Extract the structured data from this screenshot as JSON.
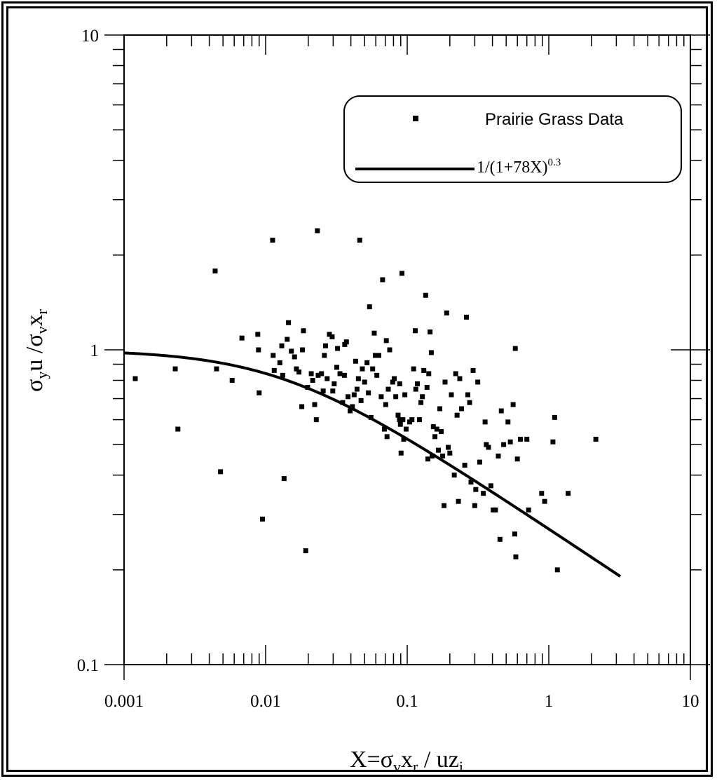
{
  "chart_data": {
    "type": "scatter",
    "x_scale": "log",
    "y_scale": "log",
    "xlim": [
      0.001,
      10
    ],
    "ylim": [
      0.1,
      10
    ],
    "grid": false,
    "x_ticks": [
      "0.001",
      "0.01",
      "0.1",
      "1",
      "10"
    ],
    "y_ticks": [
      "0.1",
      "1",
      "10"
    ],
    "xlabel": {
      "main": "X=σ",
      "sub1": "v",
      "mid": "x",
      "sub2": "r",
      "tail": " / uz",
      "sub3": "i"
    },
    "ylabel": {
      "main": "σ",
      "sub1": "y",
      "mid": "u /σ",
      "sub2": "v",
      "tail": "x",
      "sub3": "r"
    },
    "legend": {
      "placement": "top-right",
      "entries": [
        {
          "label": "Prairie Grass Data",
          "marker": "dot"
        },
        {
          "label": "1/(1+78X)",
          "superscript": "0.3",
          "marker": "line"
        }
      ]
    },
    "series": [
      {
        "name": "Prairie Grass Data",
        "kind": "points",
        "color": "#000000",
        "points": [
          [
            0.0012,
            0.81
          ],
          [
            0.0023,
            0.87
          ],
          [
            0.0024,
            0.56
          ],
          [
            0.0044,
            1.78
          ],
          [
            0.0045,
            0.87
          ],
          [
            0.0048,
            0.41
          ],
          [
            0.0058,
            0.8
          ],
          [
            0.0068,
            1.09
          ],
          [
            0.0088,
            1.12
          ],
          [
            0.0089,
            1.0
          ],
          [
            0.009,
            0.73
          ],
          [
            0.0095,
            0.29
          ],
          [
            0.0112,
            2.23
          ],
          [
            0.0113,
            0.96
          ],
          [
            0.0115,
            0.86
          ],
          [
            0.0126,
            0.91
          ],
          [
            0.013,
            1.03
          ],
          [
            0.0132,
            0.83
          ],
          [
            0.0135,
            0.39
          ],
          [
            0.0142,
            1.08
          ],
          [
            0.0145,
            1.22
          ],
          [
            0.0152,
            0.99
          ],
          [
            0.016,
            0.95
          ],
          [
            0.0165,
            0.87
          ],
          [
            0.0172,
            0.85
          ],
          [
            0.018,
            0.66
          ],
          [
            0.0182,
            1.0
          ],
          [
            0.0185,
            1.15
          ],
          [
            0.0192,
            0.23
          ],
          [
            0.0198,
            0.76
          ],
          [
            0.021,
            0.84
          ],
          [
            0.0215,
            0.8
          ],
          [
            0.0222,
            0.67
          ],
          [
            0.0228,
            0.6
          ],
          [
            0.0232,
            2.39
          ],
          [
            0.0235,
            0.83
          ],
          [
            0.0248,
            0.84
          ],
          [
            0.0255,
            0.74
          ],
          [
            0.026,
            0.96
          ],
          [
            0.0265,
            1.03
          ],
          [
            0.0272,
            0.81
          ],
          [
            0.0282,
            1.12
          ],
          [
            0.0295,
            1.1
          ],
          [
            0.0298,
            0.74
          ],
          [
            0.0305,
            0.78
          ],
          [
            0.0318,
            0.88
          ],
          [
            0.0322,
            1.01
          ],
          [
            0.0335,
            0.84
          ],
          [
            0.035,
            0.68
          ],
          [
            0.036,
            0.83
          ],
          [
            0.0362,
            1.04
          ],
          [
            0.0372,
            1.06
          ],
          [
            0.0382,
            0.71
          ],
          [
            0.0395,
            0.64
          ],
          [
            0.041,
            0.66
          ],
          [
            0.0422,
            0.72
          ],
          [
            0.0432,
            0.92
          ],
          [
            0.0442,
            0.75
          ],
          [
            0.0452,
            0.81
          ],
          [
            0.0462,
            2.23
          ],
          [
            0.0472,
            0.69
          ],
          [
            0.0482,
            0.87
          ],
          [
            0.05,
            0.79
          ],
          [
            0.052,
            0.91
          ],
          [
            0.0532,
            0.73
          ],
          [
            0.0542,
            1.37
          ],
          [
            0.0555,
            0.61
          ],
          [
            0.057,
            0.87
          ],
          [
            0.0585,
            1.13
          ],
          [
            0.0595,
            0.96
          ],
          [
            0.061,
            0.83
          ],
          [
            0.063,
            0.96
          ],
          [
            0.0655,
            0.71
          ],
          [
            0.067,
            1.67
          ],
          [
            0.069,
            0.56
          ],
          [
            0.0705,
            0.67
          ],
          [
            0.0712,
            1.07
          ],
          [
            0.072,
            0.53
          ],
          [
            0.0735,
            0.75
          ],
          [
            0.0752,
            1.0
          ],
          [
            0.079,
            0.79
          ],
          [
            0.081,
            0.81
          ],
          [
            0.083,
            0.71
          ],
          [
            0.0862,
            0.62
          ],
          [
            0.0882,
            0.6
          ],
          [
            0.0885,
            0.78
          ],
          [
            0.0895,
            0.58
          ],
          [
            0.0905,
            0.47
          ],
          [
            0.0918,
            1.75
          ],
          [
            0.0932,
            0.6
          ],
          [
            0.0945,
            0.52
          ],
          [
            0.0962,
            0.72
          ],
          [
            0.0982,
            0.56
          ],
          [
            0.104,
            0.59
          ],
          [
            0.108,
            0.6
          ],
          [
            0.111,
            0.87
          ],
          [
            0.114,
            1.15
          ],
          [
            0.115,
            0.75
          ],
          [
            0.118,
            0.78
          ],
          [
            0.122,
            0.6
          ],
          [
            0.125,
            0.68
          ],
          [
            0.128,
            0.71
          ],
          [
            0.131,
            0.86
          ],
          [
            0.135,
            1.49
          ],
          [
            0.138,
            0.76
          ],
          [
            0.14,
            0.45
          ],
          [
            0.142,
            0.84
          ],
          [
            0.145,
            1.14
          ],
          [
            0.148,
            0.98
          ],
          [
            0.15,
            0.46
          ],
          [
            0.153,
            0.57
          ],
          [
            0.157,
            0.53
          ],
          [
            0.162,
            0.56
          ],
          [
            0.166,
            0.48
          ],
          [
            0.17,
            0.65
          ],
          [
            0.174,
            0.55
          ],
          [
            0.178,
            0.46
          ],
          [
            0.182,
            0.32
          ],
          [
            0.185,
            0.79
          ],
          [
            0.19,
            1.31
          ],
          [
            0.195,
            0.49
          ],
          [
            0.2,
            0.47
          ],
          [
            0.205,
            0.72
          ],
          [
            0.215,
            0.4
          ],
          [
            0.22,
            0.84
          ],
          [
            0.225,
            0.62
          ],
          [
            0.23,
            0.33
          ],
          [
            0.235,
            0.81
          ],
          [
            0.242,
            0.65
          ],
          [
            0.255,
            0.43
          ],
          [
            0.262,
            1.27
          ],
          [
            0.268,
            0.72
          ],
          [
            0.276,
            0.68
          ],
          [
            0.282,
            0.38
          ],
          [
            0.292,
            0.86
          ],
          [
            0.3,
            0.32
          ],
          [
            0.305,
            0.36
          ],
          [
            0.315,
            0.79
          ],
          [
            0.325,
            0.44
          ],
          [
            0.345,
            0.35
          ],
          [
            0.355,
            0.59
          ],
          [
            0.362,
            0.5
          ],
          [
            0.375,
            0.49
          ],
          [
            0.39,
            0.37
          ],
          [
            0.405,
            0.31
          ],
          [
            0.42,
            0.31
          ],
          [
            0.44,
            0.46
          ],
          [
            0.452,
            0.25
          ],
          [
            0.462,
            0.64
          ],
          [
            0.48,
            0.5
          ],
          [
            0.515,
            0.59
          ],
          [
            0.535,
            0.51
          ],
          [
            0.56,
            0.67
          ],
          [
            0.575,
            0.26
          ],
          [
            0.585,
            0.22
          ],
          [
            0.6,
            0.45
          ],
          [
            0.63,
            0.52
          ],
          [
            0.7,
            0.52
          ],
          [
            0.72,
            0.31
          ],
          [
            0.89,
            0.35
          ],
          [
            0.935,
            0.33
          ],
          [
            1.07,
            0.51
          ],
          [
            1.1,
            0.61
          ],
          [
            1.15,
            0.2
          ],
          [
            1.37,
            0.35
          ],
          [
            2.15,
            0.52
          ],
          [
            0.58,
            1.01
          ]
        ]
      },
      {
        "name": "1/(1+78X)^0.3",
        "kind": "line",
        "color": "#000000",
        "formula": "1/(1+78X)^0.3",
        "x_range": [
          0.001,
          3.2
        ]
      }
    ]
  }
}
